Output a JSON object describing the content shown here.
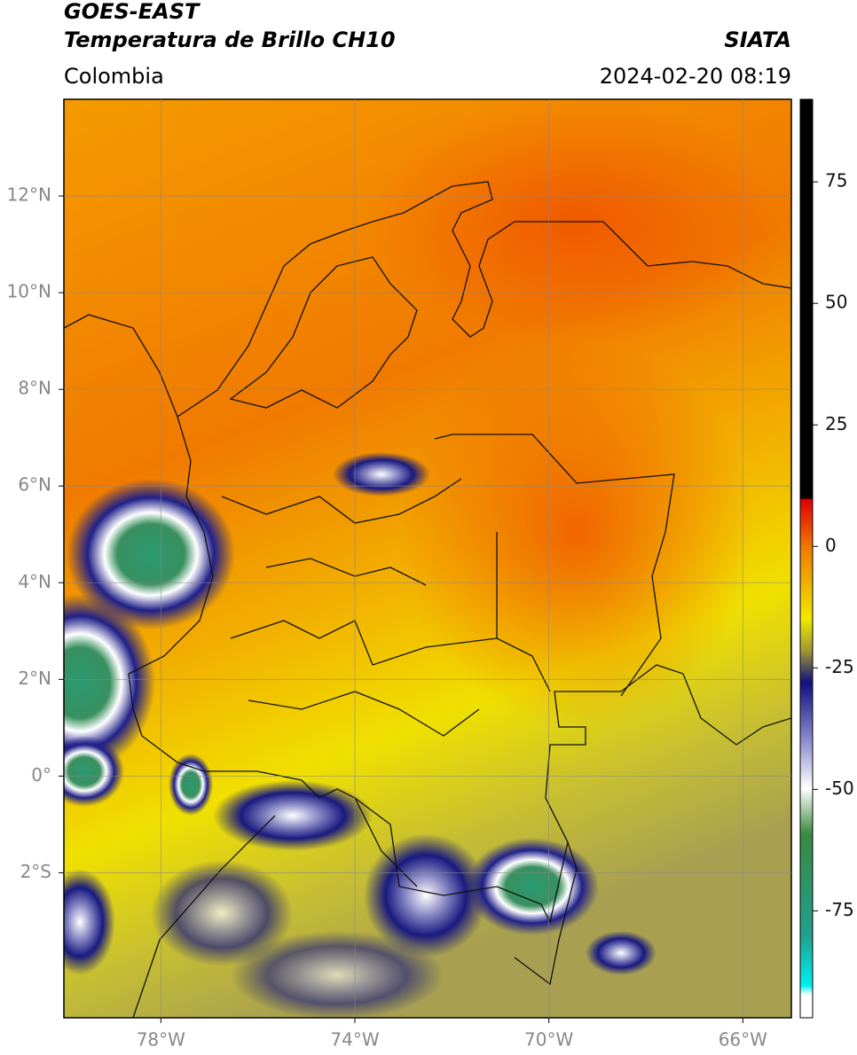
{
  "header": {
    "title": "GOES-EAST",
    "subtitle": "Temperatura de Brillo CH10",
    "source": "SIATA",
    "region": "Colombia",
    "datetime": "2024-02-20 08:19"
  },
  "chart_data": {
    "type": "map",
    "xlim": [
      -80,
      -65
    ],
    "ylim": [
      -5,
      14
    ],
    "grid": true,
    "xticks": [
      {
        "value": -78,
        "label": "78°W"
      },
      {
        "value": -74,
        "label": "74°W"
      },
      {
        "value": -70,
        "label": "70°W"
      },
      {
        "value": -66,
        "label": "66°W"
      }
    ],
    "yticks": [
      {
        "value": -2,
        "label": "2°S"
      },
      {
        "value": 0,
        "label": "0°"
      },
      {
        "value": 2,
        "label": "2°N"
      },
      {
        "value": 4,
        "label": "4°N"
      },
      {
        "value": 6,
        "label": "6°N"
      },
      {
        "value": 8,
        "label": "8°N"
      },
      {
        "value": 10,
        "label": "10°N"
      },
      {
        "value": 12,
        "label": "12°N"
      }
    ],
    "colorbar": {
      "lim": [
        -97,
        92
      ],
      "ticks": [
        -75,
        -50,
        -25,
        0,
        25,
        50,
        75
      ]
    }
  }
}
